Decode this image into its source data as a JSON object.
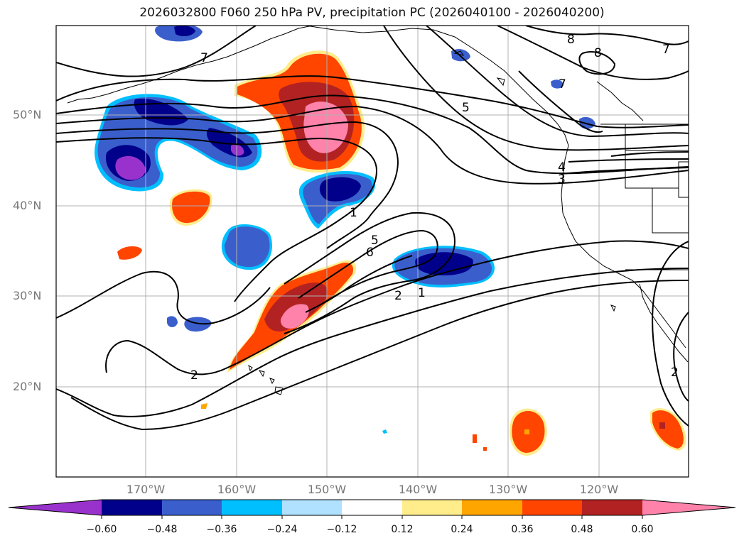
{
  "title": "2026032800 F060 250 hPa PV, precipitation PC (2026040100 - 2026040200)",
  "lat_labels": [
    "50°N",
    "40°N",
    "30°N",
    "20°N"
  ],
  "lon_labels": [
    "170°W",
    "160°W",
    "150°W",
    "140°W",
    "130°W",
    "120°W"
  ],
  "colorbar": {
    "ticks": [
      "−0.60",
      "−0.48",
      "−0.36",
      "−0.24",
      "−0.12",
      "0.12",
      "0.24",
      "0.36",
      "0.48",
      "0.60"
    ],
    "colors": [
      "#9932cc",
      "#00008b",
      "#3a5fcd",
      "#00bfff",
      "#b0e2ff",
      "#ffffff",
      "#ffec8b",
      "#ffa500",
      "#ff4500",
      "#b22222",
      "#ff82ab"
    ]
  },
  "contour_labels": [
    "7",
    "8",
    "8",
    "7",
    "7",
    "5",
    "4",
    "3",
    "1",
    "5",
    "6",
    "2",
    "1",
    "2",
    "2"
  ],
  "colors": {
    "land_line": "#000000",
    "grid": "#b0b0b0",
    "axis_text": "#777777"
  }
}
